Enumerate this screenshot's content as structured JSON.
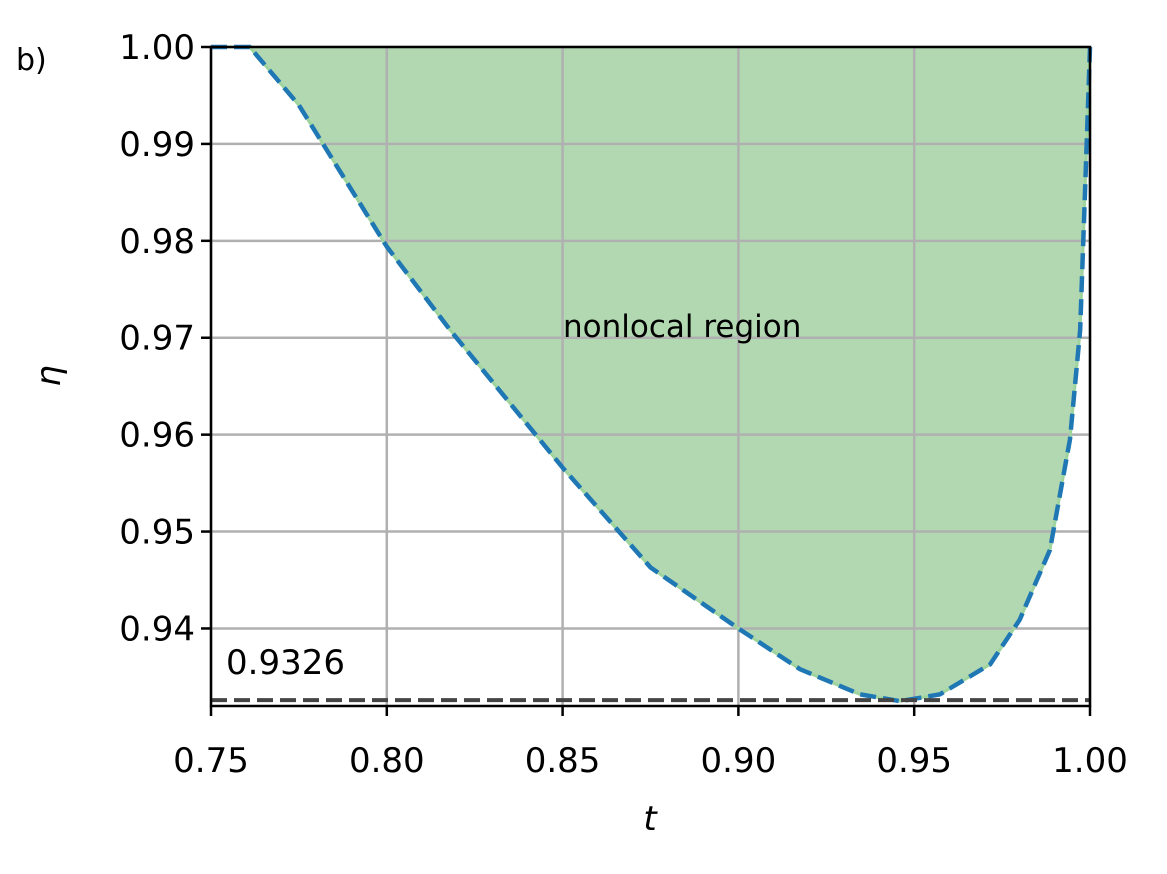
{
  "chart_data": {
    "type": "area",
    "panel_label": "b)",
    "x_label": "t",
    "y_label": "η",
    "annotation": "nonlocal region",
    "series": [
      {
        "name": "boundary",
        "color": "#1f77b4",
        "fill": "#b2d8b2",
        "x": [
          0.75,
          0.761,
          0.775,
          0.8,
          0.818,
          0.85,
          0.875,
          0.9,
          0.9175,
          0.9346,
          0.946,
          0.9573,
          0.9716,
          0.98,
          0.9886,
          0.9943,
          0.9972,
          0.999,
          1.0
        ],
        "values": [
          1.0,
          1.0,
          0.994,
          0.9794,
          0.9708,
          0.9566,
          0.9463,
          0.94,
          0.9358,
          0.9332,
          0.9325,
          0.9332,
          0.9363,
          0.9409,
          0.9481,
          0.9595,
          0.9708,
          0.9894,
          1.0
        ]
      }
    ],
    "hline": 0.9326,
    "xlim": [
      0.75,
      1.0
    ],
    "ylim": [
      0.932,
      1.0
    ],
    "xticks": [
      {
        "value": 0.75,
        "label": "0.75"
      },
      {
        "value": 0.8,
        "label": "0.80"
      },
      {
        "value": 0.85,
        "label": "0.85"
      },
      {
        "value": 0.9,
        "label": "0.90"
      },
      {
        "value": 0.95,
        "label": "0.95"
      },
      {
        "value": 1.0,
        "label": "1.00"
      }
    ],
    "yticks": [
      0.94,
      0.95,
      0.96,
      0.97,
      0.98,
      0.99,
      {
        "value": 1.0,
        "label": "1.00"
      }
    ],
    "grid": true
  }
}
